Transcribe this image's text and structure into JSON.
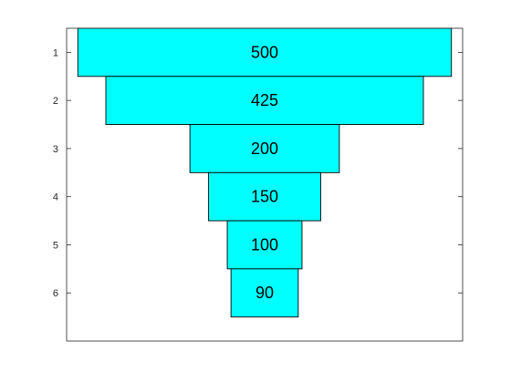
{
  "chart_data": {
    "type": "bar",
    "orientation": "horizontal-funnel",
    "categories": [
      "1",
      "2",
      "3",
      "4",
      "5",
      "6"
    ],
    "values": [
      500,
      425,
      200,
      150,
      100,
      90
    ],
    "data_labels": [
      "500",
      "425",
      "200",
      "150",
      "100",
      "90"
    ],
    "title": "",
    "xlabel": "",
    "ylabel": "",
    "xlim": [
      -265,
      265
    ],
    "ylim": [
      0.5,
      7.0
    ],
    "y_reversed": true,
    "grid": false,
    "bar_color": "#00ffff",
    "edge_color": "#000000"
  }
}
